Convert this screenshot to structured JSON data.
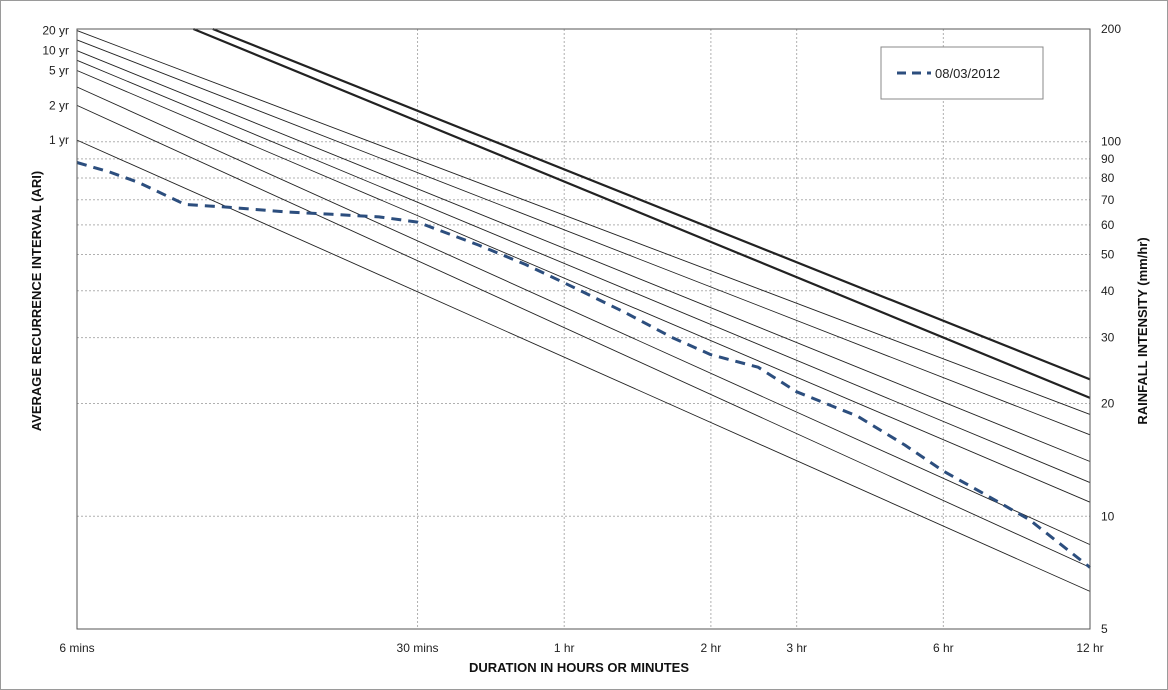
{
  "chart_data": {
    "type": "line",
    "xlabel": "DURATION IN HOURS OR MINUTES",
    "ylabel_left": "AVERAGE RECURRENCE INTERVAL (ARI)",
    "ylabel_right": "RAINFALL INTENSITY (mm/hr)",
    "x_scale": "log",
    "y_scale": "log",
    "xlim_minutes": [
      6,
      720
    ],
    "ylim_mm_per_hr": [
      5,
      200
    ],
    "x_ticks": [
      {
        "minutes": 6,
        "label": "6 mins"
      },
      {
        "minutes": 30,
        "label": "30 mins"
      },
      {
        "minutes": 60,
        "label": "1 hr"
      },
      {
        "minutes": 120,
        "label": "2 hr"
      },
      {
        "minutes": 180,
        "label": "3 hr"
      },
      {
        "minutes": 360,
        "label": "6 hr"
      },
      {
        "minutes": 720,
        "label": "12 hr"
      }
    ],
    "y_ticks_right": [
      5,
      10,
      20,
      30,
      40,
      50,
      60,
      70,
      80,
      90,
      100,
      200
    ],
    "grid": true,
    "legend_position": "top-right",
    "ari_labels": [
      {
        "label": "20 yr",
        "intensity": 198
      },
      {
        "label": "10 yr",
        "intensity": 175
      },
      {
        "label": "5 yr",
        "intensity": 155
      },
      {
        "label": "2 yr",
        "intensity": 125
      },
      {
        "label": "1 yr",
        "intensity": 101
      }
    ],
    "ifd_curves": [
      {
        "x": [
          6,
          720
        ],
        "y": [
          101,
          6.3
        ]
      },
      {
        "x": [
          6,
          720
        ],
        "y": [
          125,
          7.3
        ]
      },
      {
        "x": [
          6,
          720
        ],
        "y": [
          140,
          8.4
        ]
      },
      {
        "x": [
          6,
          720
        ],
        "y": [
          155,
          10.9
        ]
      },
      {
        "x": [
          6,
          720
        ],
        "y": [
          165,
          12.3
        ]
      },
      {
        "x": [
          6,
          720
        ],
        "y": [
          175,
          14.0
        ]
      },
      {
        "x": [
          6,
          720
        ],
        "y": [
          187,
          16.5
        ]
      },
      {
        "x": [
          6,
          720
        ],
        "y": [
          198,
          18.7
        ]
      },
      {
        "x": [
          10.4,
          720
        ],
        "y": [
          200,
          20.7
        ],
        "bold": true
      },
      {
        "x": [
          11.4,
          720
        ],
        "y": [
          200,
          23.2
        ],
        "bold": true
      }
    ],
    "series": [
      {
        "name": "08/03/2012",
        "x": [
          6,
          7,
          8,
          10,
          12,
          16,
          20,
          25,
          30,
          40,
          50,
          60,
          80,
          100,
          120,
          150,
          180,
          240,
          300,
          360,
          420,
          540,
          720
        ],
        "y": [
          88,
          83,
          78,
          68,
          67,
          65,
          64,
          63,
          61,
          53,
          47,
          42,
          35,
          30,
          27,
          25,
          21.5,
          18.5,
          15.5,
          13.2,
          11.8,
          9.8,
          7.3
        ],
        "color": "#2c4e7e",
        "style": "dashed"
      }
    ]
  }
}
